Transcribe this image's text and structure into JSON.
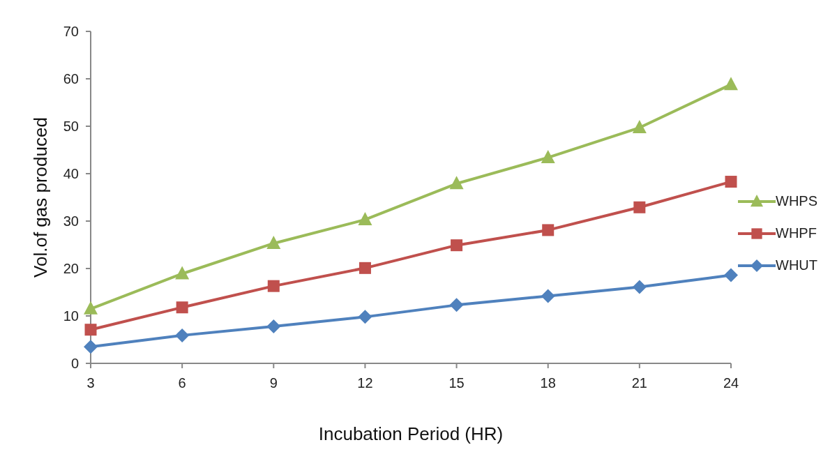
{
  "chart_data": {
    "type": "line",
    "xlabel": "Incubation Period (HR)",
    "ylabel": "Vol.of gas produced",
    "categories": [
      "3",
      "6",
      "9",
      "12",
      "15",
      "18",
      "21",
      "24"
    ],
    "ylim": [
      0,
      70
    ],
    "yticks": [
      0,
      10,
      20,
      30,
      40,
      50,
      60,
      70
    ],
    "grid": false,
    "legend": "right",
    "line_style": "solid",
    "series": [
      {
        "name": "WHPS",
        "color": "#9bbb59",
        "marker": "triangle",
        "values": [
          11.5,
          18.9,
          25.3,
          30.3,
          37.9,
          43.4,
          49.7,
          58.8
        ]
      },
      {
        "name": "WHPF",
        "color": "#c0504d",
        "marker": "square",
        "values": [
          7.1,
          11.8,
          16.3,
          20.1,
          24.9,
          28.1,
          32.9,
          38.3
        ]
      },
      {
        "name": "WHUT",
        "color": "#4f81bd",
        "marker": "diamond",
        "values": [
          3.5,
          5.9,
          7.8,
          9.8,
          12.3,
          14.2,
          16.1,
          18.6
        ]
      }
    ]
  }
}
